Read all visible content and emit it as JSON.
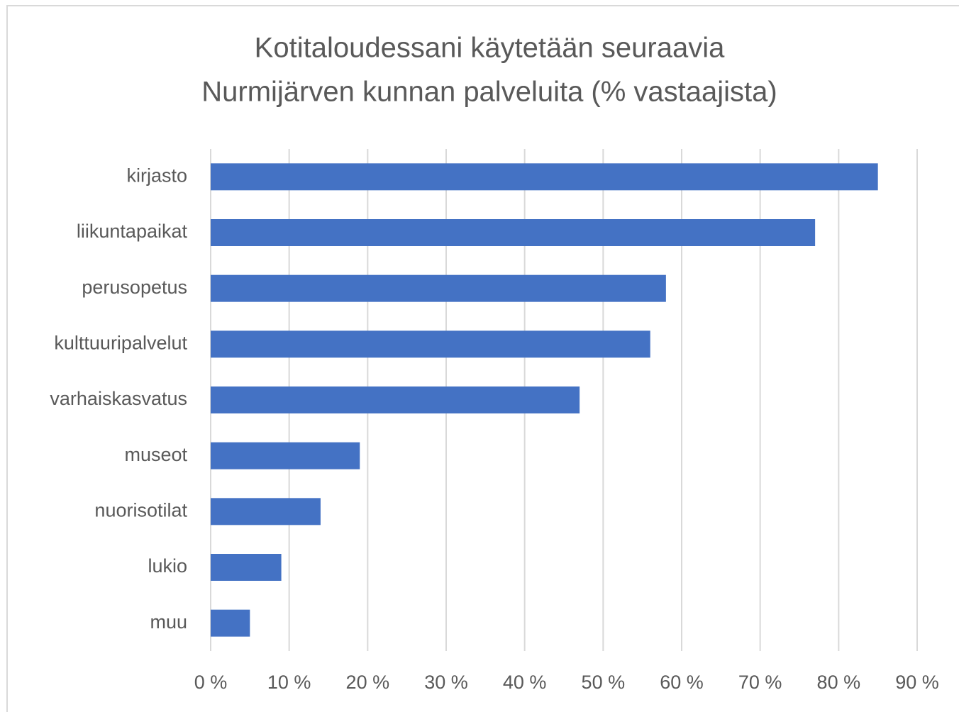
{
  "chart_data": {
    "type": "bar",
    "orientation": "horizontal",
    "title": [
      "Kotitaloudessani käytetään seuraavia",
      "Nurmijärven kunnan palveluita (% vastaajista)"
    ],
    "categories": [
      "kirjasto",
      "liikuntapaikat",
      "perusopetus",
      "kulttuuripalvelut",
      "varhaiskasvatus",
      "museot",
      "nuorisotilat",
      "lukio",
      "muu"
    ],
    "values": [
      85,
      77,
      58,
      56,
      47,
      19,
      14,
      9,
      5
    ],
    "color": "#4472c4",
    "xlim": [
      0,
      90
    ],
    "xticks": [
      {
        "value": 0,
        "label": "0 %"
      },
      {
        "value": 10,
        "label": "10 %"
      },
      {
        "value": 20,
        "label": "20 %"
      },
      {
        "value": 30,
        "label": "30 %"
      },
      {
        "value": 40,
        "label": "40 %"
      },
      {
        "value": 50,
        "label": "50 %"
      },
      {
        "value": 60,
        "label": "60 %"
      },
      {
        "value": 70,
        "label": "70 %"
      },
      {
        "value": 80,
        "label": "80 %"
      },
      {
        "value": 90,
        "label": "90 %"
      }
    ],
    "grid": true
  }
}
